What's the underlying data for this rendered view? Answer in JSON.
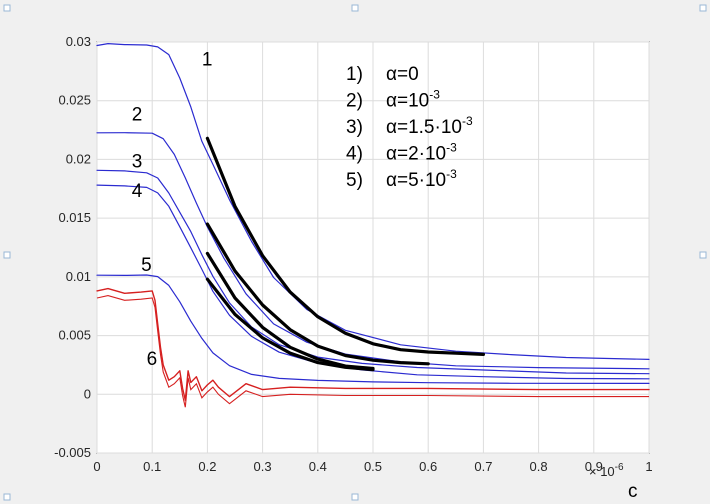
{
  "chart_data": {
    "type": "line",
    "xlim": [
      0,
      1e-06
    ],
    "ylim": [
      -0.005,
      0.03
    ],
    "x_ticks": [
      0,
      0.1,
      0.2,
      0.3,
      0.4,
      0.5,
      0.6,
      0.7,
      0.8,
      0.9,
      1
    ],
    "x_tick_labels": [
      "0",
      "0.1",
      "0.2",
      "0.3",
      "0.4",
      "0.5",
      "0.6",
      "0.7",
      "0.8",
      "0.9",
      "1"
    ],
    "y_ticks": [
      -0.005,
      0,
      0.005,
      0.01,
      0.015,
      0.02,
      0.025,
      0.03
    ],
    "y_tick_labels": [
      "-0.005",
      "0",
      "0.005",
      "0.01",
      "0.015",
      "0.02",
      "0.025",
      "0.03"
    ],
    "x_exponent": "× 10",
    "x_exponent_power": "-6",
    "xlabel": "c",
    "ylabel": "",
    "title": "",
    "grid": true,
    "colors": {
      "measured": "#2b2bd0",
      "curve6": "#d62020",
      "fit": "#000000"
    },
    "series": [
      {
        "label": "1",
        "color": "#2b2bd0",
        "kind": "measured",
        "x": [
          0,
          2e-08,
          5e-08,
          9e-08,
          1.1e-07,
          1.3e-07,
          1.5e-07,
          1.7e-07,
          1.9e-07,
          2.1e-07,
          2.4e-07,
          2.8e-07,
          3.2e-07,
          3.8e-07,
          4.5e-07,
          5.5e-07,
          6.5e-07,
          7.5e-07,
          8.5e-07,
          1e-06
        ],
        "y": [
          0.0297,
          0.0298,
          0.0297,
          0.0297,
          0.0296,
          0.029,
          0.027,
          0.0245,
          0.0215,
          0.0195,
          0.0165,
          0.013,
          0.01,
          0.0073,
          0.0055,
          0.0042,
          0.0036,
          0.0033,
          0.0031,
          0.003
        ]
      },
      {
        "label": "2",
        "color": "#2b2bd0",
        "kind": "measured",
        "x": [
          0,
          5e-08,
          1e-07,
          1.2e-07,
          1.4e-07,
          1.6e-07,
          1.8e-07,
          2e-07,
          2.3e-07,
          2.7e-07,
          3.2e-07,
          3.8e-07,
          4.5e-07,
          5.5e-07,
          6.5e-07,
          8e-07,
          1e-06
        ],
        "y": [
          0.0222,
          0.0222,
          0.0222,
          0.0218,
          0.0205,
          0.0185,
          0.0163,
          0.0142,
          0.0115,
          0.0085,
          0.006,
          0.0045,
          0.0035,
          0.0028,
          0.0024,
          0.0022,
          0.0021
        ]
      },
      {
        "label": "3",
        "color": "#2b2bd0",
        "kind": "measured",
        "x": [
          0,
          5e-08,
          9e-08,
          1.1e-07,
          1.3e-07,
          1.5e-07,
          1.7e-07,
          1.9e-07,
          2.1e-07,
          2.4e-07,
          2.8e-07,
          3.3e-07,
          4e-07,
          4.8e-07,
          5.8e-07,
          7e-07,
          8.5e-07,
          1e-06
        ],
        "y": [
          0.019,
          0.019,
          0.0189,
          0.0185,
          0.0172,
          0.0155,
          0.0138,
          0.0118,
          0.01,
          0.0078,
          0.0058,
          0.0043,
          0.0032,
          0.0026,
          0.0022,
          0.002,
          0.0018,
          0.0018
        ]
      },
      {
        "label": "4",
        "color": "#2b2bd0",
        "kind": "measured",
        "x": [
          0,
          5e-08,
          9e-08,
          1.1e-07,
          1.3e-07,
          1.5e-07,
          1.7e-07,
          1.9e-07,
          2.1e-07,
          2.4e-07,
          2.8e-07,
          3.3e-07,
          4e-07,
          4.8e-07,
          5.8e-07,
          7e-07,
          8.5e-07,
          1e-06
        ],
        "y": [
          0.0178,
          0.0178,
          0.0177,
          0.0172,
          0.016,
          0.0142,
          0.0124,
          0.0106,
          0.0088,
          0.0068,
          0.005,
          0.0036,
          0.0026,
          0.002,
          0.0016,
          0.0015,
          0.0014,
          0.0014
        ]
      },
      {
        "label": "5",
        "color": "#2b2bd0",
        "kind": "measured",
        "x": [
          0,
          5e-08,
          9e-08,
          1.1e-07,
          1.3e-07,
          1.5e-07,
          1.7e-07,
          1.9e-07,
          2.1e-07,
          2.4e-07,
          2.8e-07,
          3.3e-07,
          4e-07,
          5e-07,
          6e-07,
          7.5e-07,
          1e-06
        ],
        "y": [
          0.0102,
          0.0102,
          0.0102,
          0.01,
          0.0092,
          0.0078,
          0.0062,
          0.0048,
          0.0036,
          0.0025,
          0.0017,
          0.0013,
          0.0011,
          0.001,
          0.001,
          0.001,
          0.001
        ]
      },
      {
        "label": "6",
        "color": "#d62020",
        "kind": "measured",
        "x": [
          0,
          2e-08,
          5e-08,
          8e-08,
          1e-07,
          1.05e-07,
          1.1e-07,
          1.15e-07,
          1.2e-07,
          1.3e-07,
          1.4e-07,
          1.5e-07,
          1.55e-07,
          1.6e-07,
          1.65e-07,
          1.7e-07,
          1.8e-07,
          1.9e-07,
          2e-07,
          2.1e-07,
          2.2e-07,
          2.4e-07,
          2.7e-07,
          3e-07,
          3.5e-07,
          4.5e-07,
          6e-07,
          8e-07,
          1e-06
        ],
        "y": [
          0.0088,
          0.009,
          0.0086,
          0.0087,
          0.0088,
          0.008,
          0.006,
          0.004,
          0.0025,
          0.0012,
          0.0015,
          0.002,
          0.0005,
          -0.0005,
          0.002,
          0.001,
          0.0015,
          0.0003,
          0.0008,
          0.0012,
          0.0006,
          -0.0002,
          0.0009,
          0.0004,
          0.0006,
          0.0005,
          0.0005,
          0.0004,
          0.0004
        ]
      },
      {
        "label": "",
        "color": "#000000",
        "kind": "fit",
        "x": [
          2e-07,
          2.5e-07,
          3e-07,
          3.5e-07,
          4e-07,
          4.5e-07,
          5e-07,
          5.5e-07,
          6e-07,
          6.5e-07,
          7e-07
        ],
        "y": [
          0.0218,
          0.016,
          0.0118,
          0.0087,
          0.0066,
          0.0052,
          0.0043,
          0.0038,
          0.0036,
          0.0035,
          0.0034
        ]
      },
      {
        "label": "",
        "color": "#000000",
        "kind": "fit",
        "x": [
          2e-07,
          2.5e-07,
          3e-07,
          3.5e-07,
          4e-07,
          4.5e-07,
          5e-07,
          5.5e-07,
          6e-07
        ],
        "y": [
          0.0145,
          0.0105,
          0.0076,
          0.0055,
          0.0041,
          0.0033,
          0.0029,
          0.0027,
          0.0026
        ]
      },
      {
        "label": "",
        "color": "#000000",
        "kind": "fit",
        "x": [
          2e-07,
          2.5e-07,
          3e-07,
          3.5e-07,
          4e-07,
          4.5e-07,
          5e-07
        ],
        "y": [
          0.012,
          0.0082,
          0.0057,
          0.004,
          0.003,
          0.0024,
          0.0022
        ]
      },
      {
        "label": "",
        "color": "#000000",
        "kind": "fit",
        "x": [
          2e-07,
          2.5e-07,
          3e-07,
          3.5e-07,
          4e-07,
          4.5e-07,
          5e-07
        ],
        "y": [
          0.0098,
          0.0068,
          0.0048,
          0.0035,
          0.0027,
          0.0023,
          0.0021
        ]
      }
    ],
    "curve_labels": [
      {
        "text": "1",
        "x": 1.9e-07,
        "y": 0.028
      },
      {
        "text": "2",
        "x": 6.3e-08,
        "y": 0.0233
      },
      {
        "text": "3",
        "x": 6.3e-08,
        "y": 0.0193
      },
      {
        "text": "4",
        "x": 6.3e-08,
        "y": 0.0168
      },
      {
        "text": "5",
        "x": 8e-08,
        "y": 0.0105
      },
      {
        "text": "6",
        "x": 9e-08,
        "y": 0.0025
      }
    ],
    "legend": [
      {
        "num": "1)",
        "base": "α=0",
        "sup": ""
      },
      {
        "num": "2)",
        "base": "α=10",
        "sup": "-3"
      },
      {
        "num": "3)",
        "base": "α=1.5·10",
        "sup": "-3"
      },
      {
        "num": "4)",
        "base": "α=2·10",
        "sup": "-3"
      },
      {
        "num": "5)",
        "base": "α=5·10",
        "sup": "-3"
      }
    ],
    "legend_placement": "top-right"
  }
}
